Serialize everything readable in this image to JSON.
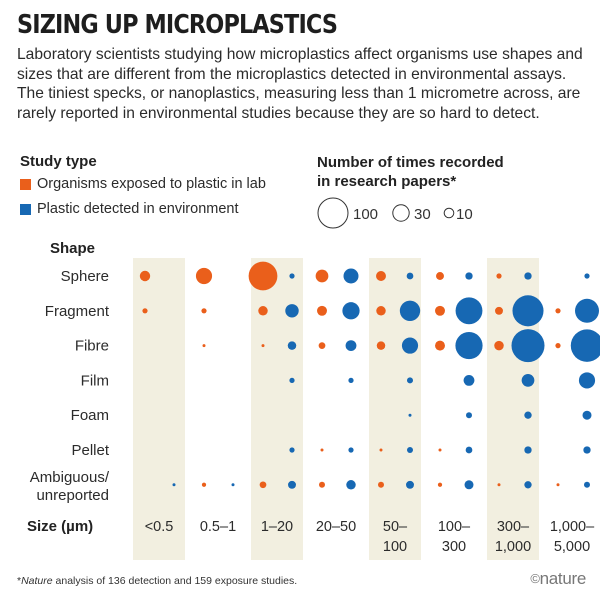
{
  "title": "SIZING UP MICROPLASTICS",
  "subtitle": "Laboratory scientists studying how microplastics affect organisms use shapes and sizes that are different from the microplastics detected in environmental assays. The tiniest specks, or nanoplastics, measuring less than 1 micrometre across, are rarely reported in environmental studies because they are so hard to detect.",
  "legend": {
    "study_type_title": "Study type",
    "lab_label": "Organisms exposed to plastic in lab",
    "env_label": "Plastic detected in environment",
    "size_title_line1": "Number of times recorded",
    "size_title_line2": "in research papers*",
    "size_keys": [
      "100",
      "30",
      "10"
    ]
  },
  "footnote_prefix": "*",
  "footnote_italic": "Nature",
  "footnote_text": " analysis of 136 detection and 159 exposure studies.",
  "brand": "nature",
  "brand_icon": "©",
  "chart_data": {
    "type": "bubble-grid",
    "title": "SIZING UP MICROPLASTICS",
    "row_axis_title": "Shape",
    "column_axis_title": "Size (µm)",
    "size_columns": [
      {
        "label1": "<0.5",
        "label2": "",
        "shaded": true
      },
      {
        "label1": "0.5–1",
        "label2": "",
        "shaded": false
      },
      {
        "label1": "1–20",
        "label2": "",
        "shaded": true
      },
      {
        "label1": "20–50",
        "label2": "",
        "shaded": false
      },
      {
        "label1": "50–",
        "label2": "100",
        "shaded": true
      },
      {
        "label1": "100–",
        "label2": "300",
        "shaded": false
      },
      {
        "label1": "300–",
        "label2": "1,000",
        "shaded": true
      },
      {
        "label1": "1,000–",
        "label2": "5,000",
        "shaded": false
      }
    ],
    "shapes": [
      {
        "label1": "Sphere",
        "label2": ""
      },
      {
        "label1": "Fragment",
        "label2": ""
      },
      {
        "label1": "Fibre",
        "label2": ""
      },
      {
        "label1": "Film",
        "label2": ""
      },
      {
        "label1": "Foam",
        "label2": ""
      },
      {
        "label1": "Pellet",
        "label2": ""
      },
      {
        "label1": "Ambiguous/",
        "label2": "unreported"
      }
    ],
    "series": [
      {
        "name": "Organisms exposed to plastic in lab",
        "color": "#ea5f1b",
        "values": [
          [
            12,
            29,
            92,
            18,
            11,
            7,
            3,
            0
          ],
          [
            3,
            3,
            10,
            11,
            10,
            11,
            7,
            3
          ],
          [
            0,
            1,
            1,
            5,
            8,
            11,
            10,
            3
          ],
          [
            0,
            0,
            0,
            0,
            0,
            0,
            0,
            0
          ],
          [
            0,
            0,
            0,
            0,
            0,
            0,
            0,
            0
          ],
          [
            0,
            0,
            0,
            1,
            1,
            1,
            0,
            0
          ],
          [
            0,
            2,
            5,
            4,
            4,
            2,
            1,
            1
          ]
        ]
      },
      {
        "name": "Plastic detected in environment",
        "color": "#1768b3",
        "values": [
          [
            0,
            0,
            3,
            25,
            5,
            6,
            6,
            3
          ],
          [
            0,
            0,
            20,
            33,
            46,
            80,
            107,
            64
          ],
          [
            0,
            0,
            8,
            13,
            29,
            82,
            121,
            117
          ],
          [
            0,
            0,
            3,
            3,
            4,
            13,
            18,
            29
          ],
          [
            0,
            0,
            0,
            0,
            1,
            4,
            6,
            9
          ],
          [
            0,
            0,
            3,
            3,
            4,
            5,
            6,
            6
          ],
          [
            1,
            1,
            7,
            10,
            7,
            9,
            6,
            4
          ]
        ]
      }
    ]
  }
}
